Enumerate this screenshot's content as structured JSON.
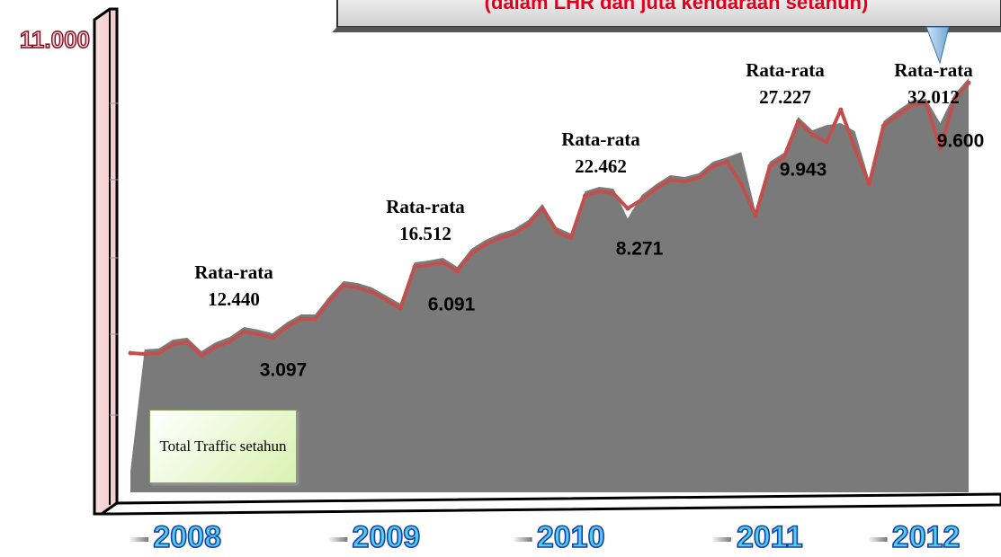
{
  "chart_data": {
    "type": "line",
    "title": "(dalam LHR dan juta kendaraan setahun)",
    "categories": [
      null,
      null,
      null,
      null,
      "2008",
      null,
      null,
      null,
      null,
      null,
      null,
      null,
      null,
      null,
      null,
      null,
      null,
      null,
      "2009",
      null,
      null,
      null,
      null,
      null,
      null,
      null,
      null,
      null,
      null,
      null,
      null,
      "2010",
      null,
      null,
      null,
      null,
      null,
      null,
      null,
      null,
      null,
      null,
      null,
      null,
      null,
      "2011",
      null,
      null,
      null,
      null,
      null,
      null,
      null,
      null,
      null,
      null,
      "2012",
      null,
      null,
      null
    ],
    "series": [
      {
        "name": "Total Traffic setahun",
        "color": "#7a7a7a",
        "fill": "area",
        "values": [
          500,
          3444,
          3466,
          3682,
          3726,
          3401,
          3617,
          3747,
          3985,
          3920,
          3834,
          4094,
          4288,
          4288,
          4722,
          5090,
          5046,
          4938,
          4743,
          4548,
          5544,
          5587,
          5652,
          5436,
          5869,
          6085,
          6237,
          6345,
          6562,
          6951,
          6389,
          6237,
          7255,
          7363,
          7319,
          6600,
          7168,
          7428,
          7644,
          7601,
          7688,
          7969,
          8077,
          8200,
          6778,
          7969,
          8185,
          9051,
          8727,
          8850,
          8900,
          8700,
          7536,
          8943,
          9203,
          9441,
          9485,
          8900,
          9593,
          9982
        ]
      },
      {
        "color": "#c0504d",
        "fill": "line",
        "values": [
          3356,
          3334,
          3356,
          3572,
          3616,
          3291,
          3507,
          3637,
          3875,
          3810,
          3724,
          3984,
          4178,
          4178,
          4612,
          4980,
          4936,
          4828,
          4633,
          4438,
          5434,
          5477,
          5542,
          5326,
          5759,
          5975,
          6127,
          6235,
          6452,
          6841,
          6279,
          6127,
          7145,
          7253,
          7209,
          6841,
          7058,
          7318,
          7534,
          7491,
          7578,
          7859,
          7967,
          7426,
          6668,
          7859,
          8075,
          8941,
          8617,
          8444,
          9223,
          8292,
          7426,
          8833,
          9093,
          9331,
          9375,
          8292,
          9483,
          9872
        ]
      }
    ],
    "ylim": [
      0,
      11000
    ],
    "yticks": [
      {
        "value": 11000,
        "label": "11.000"
      }
    ],
    "annotations": [
      "Rata-rata",
      "12.440",
      "Rata-rata",
      "16.512",
      "Rata-rata",
      "22.462",
      "Rata-rata",
      "27.227",
      "Rata-rata",
      "32.012",
      "3.097",
      "6.091",
      "8.271",
      "9.943",
      "9.600"
    ]
  }
}
